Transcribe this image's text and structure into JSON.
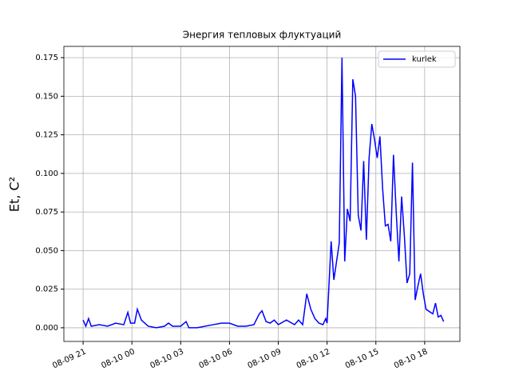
{
  "chart_data": {
    "type": "line",
    "title": "Энергия тепловых флуктуаций",
    "y_label": "Et, C²",
    "x": [
      "08-09 21:00",
      "08-09 21:10",
      "08-09 21:20",
      "08-09 21:30",
      "08-09 22:00",
      "08-09 22:30",
      "08-09 23:00",
      "08-09 23:30",
      "08-09 23:45",
      "08-09 23:55",
      "08-10 00:10",
      "08-10 00:20",
      "08-10 00:35",
      "08-10 01:00",
      "08-10 01:30",
      "08-10 02:00",
      "08-10 02:15",
      "08-10 02:30",
      "08-10 03:00",
      "08-10 03:20",
      "08-10 03:30",
      "08-10 04:00",
      "08-10 05:00",
      "08-10 05:30",
      "08-10 06:00",
      "08-10 06:30",
      "08-10 07:00",
      "08-10 07:30",
      "08-10 07:50",
      "08-10 08:00",
      "08-10 08:15",
      "08-10 08:30",
      "08-10 08:45",
      "08-10 09:00",
      "08-10 09:30",
      "08-10 10:00",
      "08-10 10:15",
      "08-10 10:30",
      "08-10 10:45",
      "08-10 11:00",
      "08-10 11:15",
      "08-10 11:30",
      "08-10 11:45",
      "08-10 11:55",
      "08-10 12:00",
      "08-10 12:15",
      "08-10 12:25",
      "08-10 12:45",
      "08-10 12:55",
      "08-10 13:05",
      "08-10 13:15",
      "08-10 13:25",
      "08-10 13:35",
      "08-10 13:45",
      "08-10 13:55",
      "08-10 14:05",
      "08-10 14:15",
      "08-10 14:25",
      "08-10 14:35",
      "08-10 14:45",
      "08-10 14:55",
      "08-10 15:05",
      "08-10 15:15",
      "08-10 15:25",
      "08-10 15:35",
      "08-10 15:45",
      "08-10 15:55",
      "08-10 16:05",
      "08-10 16:15",
      "08-10 16:25",
      "08-10 16:35",
      "08-10 16:45",
      "08-10 16:55",
      "08-10 17:05",
      "08-10 17:15",
      "08-10 17:25",
      "08-10 17:35",
      "08-10 17:45",
      "08-10 17:55",
      "08-10 18:05",
      "08-10 18:30",
      "08-10 18:40",
      "08-10 18:50",
      "08-10 19:00",
      "08-10 19:10"
    ],
    "series": [
      {
        "name": "kurlek",
        "color": "#0000ff",
        "values": [
          0.005,
          0.001,
          0.006,
          0.001,
          0.002,
          0.001,
          0.003,
          0.002,
          0.01,
          0.003,
          0.003,
          0.012,
          0.005,
          0.001,
          0.0,
          0.001,
          0.003,
          0.001,
          0.001,
          0.004,
          0.0,
          0.0,
          0.002,
          0.003,
          0.003,
          0.001,
          0.001,
          0.002,
          0.009,
          0.011,
          0.004,
          0.003,
          0.005,
          0.002,
          0.005,
          0.002,
          0.005,
          0.002,
          0.022,
          0.012,
          0.006,
          0.003,
          0.002,
          0.006,
          0.003,
          0.056,
          0.031,
          0.055,
          0.175,
          0.043,
          0.077,
          0.069,
          0.161,
          0.15,
          0.073,
          0.063,
          0.108,
          0.057,
          0.11,
          0.132,
          0.122,
          0.11,
          0.124,
          0.09,
          0.066,
          0.067,
          0.056,
          0.112,
          0.075,
          0.043,
          0.085,
          0.06,
          0.029,
          0.035,
          0.107,
          0.018,
          0.027,
          0.035,
          0.022,
          0.012,
          0.009,
          0.016,
          0.007,
          0.008,
          0.004
        ]
      }
    ],
    "xlim": [
      "08-09 19:49",
      "08-10 20:10"
    ],
    "xticks": [
      {
        "value": "08-09 21:00",
        "label": "08-09 21"
      },
      {
        "value": "08-10 00:00",
        "label": "08-10 00"
      },
      {
        "value": "08-10 03:00",
        "label": "08-10 03"
      },
      {
        "value": "08-10 06:00",
        "label": "08-10 06"
      },
      {
        "value": "08-10 09:00",
        "label": "08-10 09"
      },
      {
        "value": "08-10 12:00",
        "label": "08-10 12"
      },
      {
        "value": "08-10 15:00",
        "label": "08-10 15"
      },
      {
        "value": "08-10 18:00",
        "label": "08-10 18"
      }
    ],
    "ylim": [
      -0.00885,
      0.1823
    ],
    "yticks": [
      {
        "value": 0,
        "label": "0.000"
      },
      0.025,
      {
        "value": 0.05,
        "label": "0.050"
      },
      0.075,
      {
        "value": 0.1,
        "label": "0.100"
      },
      0.125,
      {
        "value": 0.15,
        "label": "0.150"
      },
      0.175
    ],
    "grid": true,
    "legend": "upper right"
  }
}
